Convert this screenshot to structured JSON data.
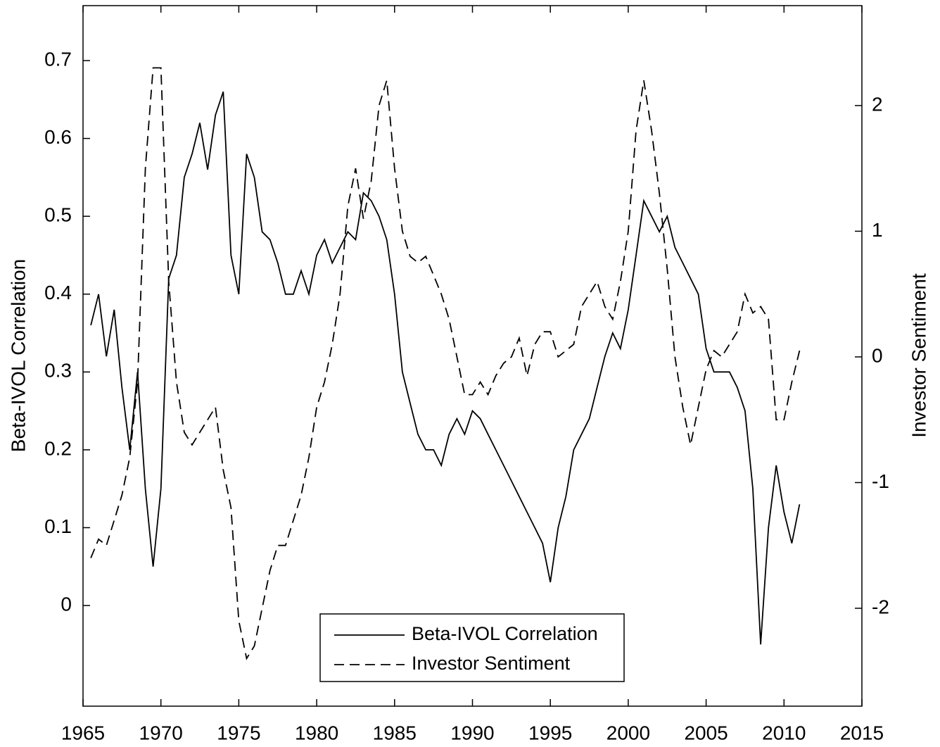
{
  "chart_data": {
    "type": "line",
    "y_label": "Beta-IVOL Correlation",
    "y2_label": "Investor Sentiment",
    "x": [
      1965.5,
      1966,
      1966.5,
      1967,
      1967.5,
      1968,
      1968.5,
      1969,
      1969.5,
      1970,
      1970.5,
      1971,
      1971.5,
      1972,
      1972.5,
      1973,
      1973.5,
      1974,
      1974.5,
      1975,
      1975.5,
      1976,
      1976.5,
      1977,
      1977.5,
      1978,
      1978.5,
      1979,
      1979.5,
      1980,
      1980.5,
      1981,
      1981.5,
      1982,
      1982.5,
      1983,
      1983.5,
      1984,
      1984.5,
      1985,
      1985.5,
      1986,
      1986.5,
      1987,
      1987.5,
      1988,
      1988.5,
      1989,
      1989.5,
      1990,
      1990.5,
      1991,
      1991.5,
      1992,
      1992.5,
      1993,
      1993.5,
      1994,
      1994.5,
      1995,
      1995.5,
      1996,
      1996.5,
      1997,
      1997.5,
      1998,
      1998.5,
      1999,
      1999.5,
      2000,
      2000.5,
      2001,
      2001.5,
      2002,
      2002.5,
      2003,
      2003.5,
      2004,
      2004.5,
      2005,
      2005.5,
      2006,
      2006.5,
      2007,
      2007.5,
      2008,
      2008.5,
      2009,
      2009.5,
      2010,
      2010.5,
      2011
    ],
    "series": [
      {
        "name": "Beta-IVOL Correlation",
        "color": "#000000",
        "dash": "none",
        "values": [
          0.36,
          0.4,
          0.32,
          0.38,
          0.28,
          0.2,
          0.3,
          0.15,
          0.05,
          0.15,
          0.42,
          0.45,
          0.55,
          0.58,
          0.62,
          0.56,
          0.63,
          0.66,
          0.45,
          0.4,
          0.58,
          0.55,
          0.48,
          0.47,
          0.44,
          0.4,
          0.4,
          0.43,
          0.4,
          0.45,
          0.47,
          0.44,
          0.46,
          0.48,
          0.47,
          0.53,
          0.52,
          0.5,
          0.47,
          0.4,
          0.3,
          0.26,
          0.22,
          0.2,
          0.2,
          0.18,
          0.22,
          0.24,
          0.22,
          0.25,
          0.24,
          0.22,
          0.2,
          0.18,
          0.16,
          0.14,
          0.12,
          0.1,
          0.08,
          0.03,
          0.1,
          0.14,
          0.2,
          0.22,
          0.24,
          0.28,
          0.32,
          0.35,
          0.33,
          0.38,
          0.45,
          0.52,
          0.5,
          0.48,
          0.5,
          0.46,
          0.44,
          0.42,
          0.4,
          0.33,
          0.3,
          0.3,
          0.3,
          0.28,
          0.25,
          0.15,
          -0.05,
          0.1,
          0.18,
          0.12,
          0.08,
          0.13
        ]
      },
      {
        "name": "Investor Sentiment",
        "color": "#000000",
        "dash": "14 8",
        "axis": "y2",
        "values": [
          -1.6,
          -1.45,
          -1.5,
          -1.3,
          -1.1,
          -0.8,
          -0.2,
          1.5,
          2.3,
          2.3,
          0.6,
          -0.2,
          -0.6,
          -0.7,
          -0.6,
          -0.5,
          -0.4,
          -0.9,
          -1.2,
          -2.1,
          -2.4,
          -2.3,
          -2.0,
          -1.7,
          -1.5,
          -1.5,
          -1.3,
          -1.1,
          -0.8,
          -0.4,
          -0.2,
          0.1,
          0.5,
          1.2,
          1.5,
          1.1,
          1.4,
          2.0,
          2.2,
          1.5,
          1.0,
          0.8,
          0.75,
          0.8,
          0.65,
          0.5,
          0.3,
          0.0,
          -0.3,
          -0.3,
          -0.2,
          -0.3,
          -0.15,
          -0.05,
          0.0,
          0.15,
          -0.15,
          0.1,
          0.2,
          0.2,
          0.0,
          0.05,
          0.1,
          0.4,
          0.5,
          0.6,
          0.4,
          0.3,
          0.6,
          1.0,
          1.8,
          2.2,
          1.8,
          1.3,
          0.7,
          0.0,
          -0.4,
          -0.7,
          -0.4,
          -0.1,
          0.05,
          0.0,
          0.1,
          0.2,
          0.5,
          0.35,
          0.4,
          0.3,
          -0.5,
          -0.5,
          -0.2,
          0.05
        ]
      }
    ],
    "xlim": [
      1965,
      2015
    ],
    "xticks": [
      1965,
      1970,
      1975,
      1980,
      1985,
      1990,
      1995,
      2000,
      2005,
      2010,
      2015
    ],
    "ylim": [
      -0.1293,
      0.7706
    ],
    "yticks": [
      0,
      0.1,
      0.2,
      0.3,
      0.4,
      0.5,
      0.6,
      0.7
    ],
    "y2lim": [
      -2.779,
      2.795
    ],
    "y2ticks": [
      -2,
      -1,
      0,
      1,
      2
    ],
    "legend": "bottom-center"
  }
}
